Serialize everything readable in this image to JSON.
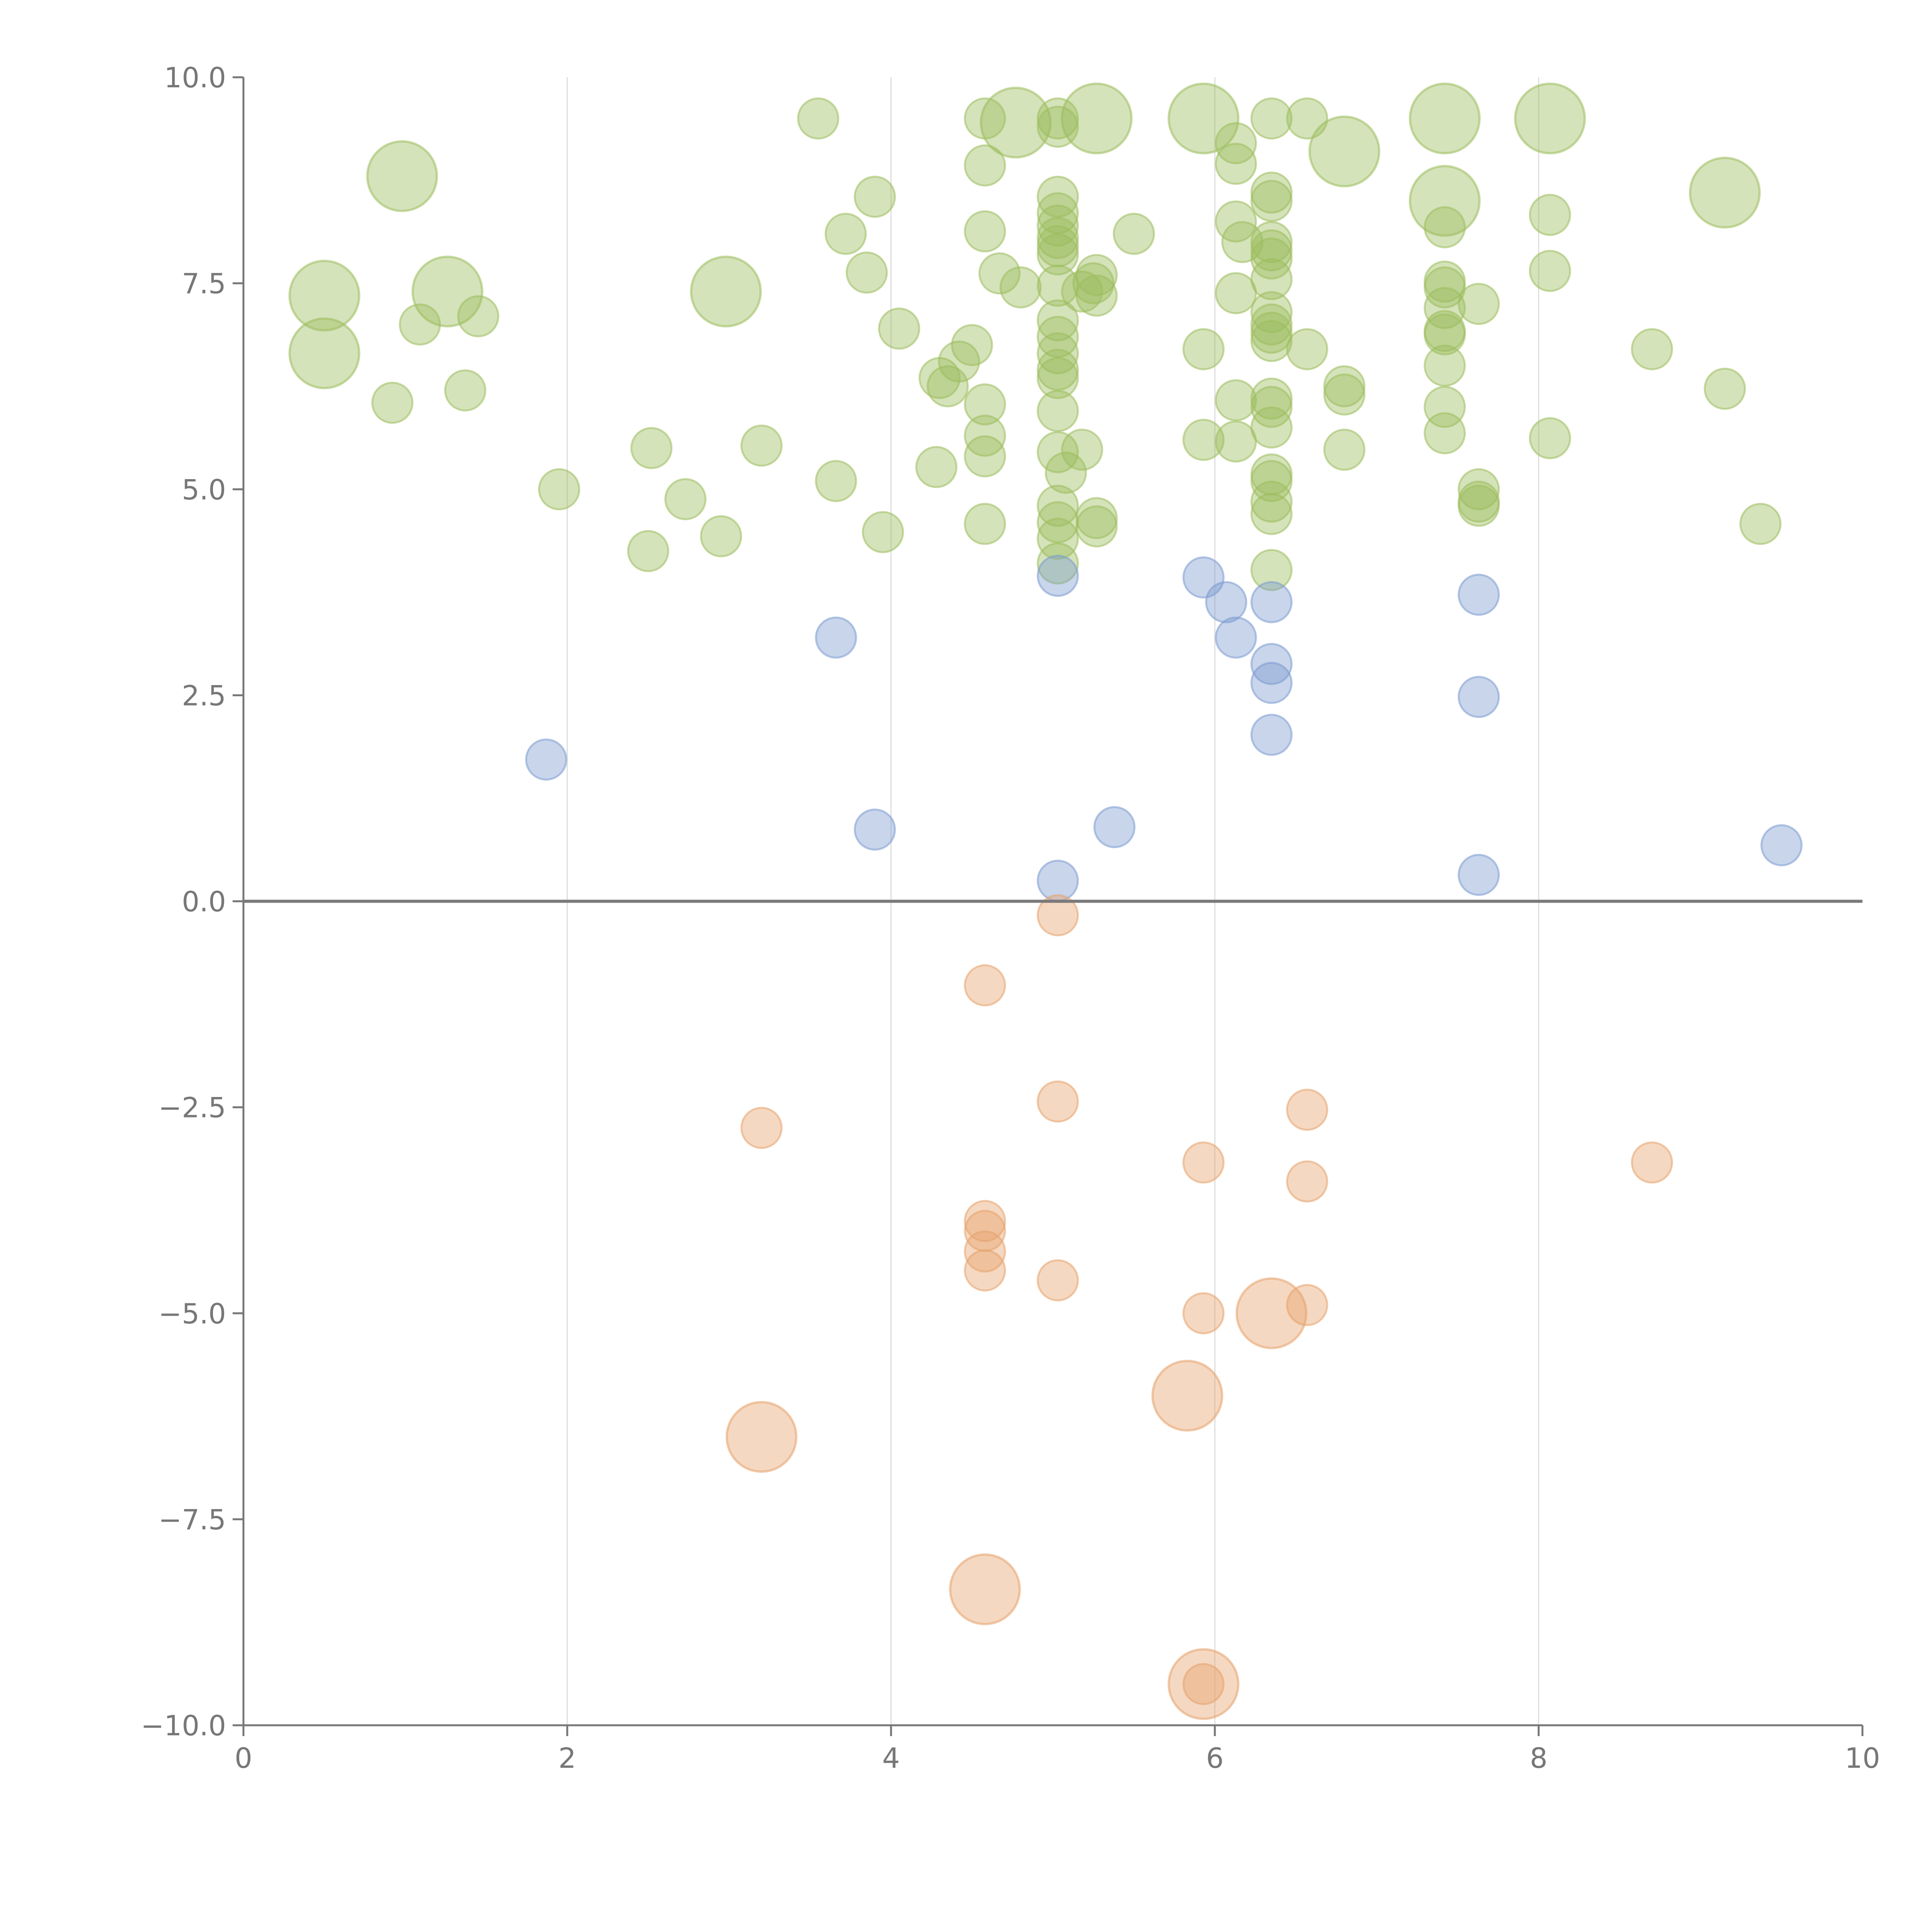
{
  "chart_data": {
    "type": "scatter",
    "xlim": [
      0,
      10
    ],
    "ylim": [
      -10,
      10
    ],
    "x_ticks": [
      "0",
      "2",
      "4",
      "6",
      "8",
      "10"
    ],
    "y_ticks": [
      "10.0",
      "7.5",
      "5.0",
      "2.5",
      "0.0",
      "−2.5",
      "−5.0",
      "−7.5",
      "−10.0"
    ],
    "grid_x": true,
    "zero_line": true,
    "colors": {
      "green": "#9cbd5c",
      "blue": "#7b9bd0",
      "orange": "#e6a36b"
    },
    "series": [
      {
        "color": "green",
        "points": [
          [
            0.5,
            7.35,
            2
          ],
          [
            0.5,
            6.65,
            2
          ],
          [
            0.98,
            8.8,
            2
          ],
          [
            1.26,
            7.4,
            2
          ],
          [
            2.98,
            7.4,
            2
          ],
          [
            4.77,
            9.45,
            2
          ],
          [
            5.27,
            9.5,
            2
          ],
          [
            5.93,
            9.5,
            2
          ],
          [
            6.8,
            9.1,
            2
          ],
          [
            7.42,
            9.5,
            2
          ],
          [
            7.42,
            8.5,
            2
          ],
          [
            8.07,
            9.5,
            2
          ],
          [
            9.15,
            8.6,
            2
          ],
          [
            0.92,
            6.05,
            1
          ],
          [
            1.09,
            7.0,
            1
          ],
          [
            1.37,
            6.2,
            1
          ],
          [
            1.45,
            7.1,
            1
          ],
          [
            1.95,
            5.0,
            1
          ],
          [
            2.5,
            4.25,
            1
          ],
          [
            2.52,
            5.5,
            1
          ],
          [
            2.73,
            4.88,
            1
          ],
          [
            2.95,
            4.43,
            1
          ],
          [
            3.2,
            5.53,
            1
          ],
          [
            3.55,
            9.5,
            1
          ],
          [
            3.66,
            5.1,
            1
          ],
          [
            3.72,
            8.1,
            1
          ],
          [
            3.85,
            7.63,
            1
          ],
          [
            3.9,
            8.55,
            1
          ],
          [
            3.95,
            4.48,
            1
          ],
          [
            4.05,
            6.95,
            1
          ],
          [
            4.28,
            5.27,
            1
          ],
          [
            4.3,
            6.35,
            1
          ],
          [
            4.35,
            6.25,
            1
          ],
          [
            4.42,
            6.55,
            1
          ],
          [
            4.5,
            6.75,
            1
          ],
          [
            4.58,
            9.5,
            1
          ],
          [
            4.58,
            8.93,
            1
          ],
          [
            4.58,
            8.13,
            1
          ],
          [
            4.58,
            6.03,
            1
          ],
          [
            4.58,
            5.65,
            1
          ],
          [
            4.58,
            5.4,
            1
          ],
          [
            4.58,
            4.58,
            1
          ],
          [
            4.67,
            7.62,
            1
          ],
          [
            4.8,
            7.45,
            1
          ],
          [
            5.03,
            9.5,
            1
          ],
          [
            5.03,
            9.4,
            1
          ],
          [
            5.03,
            8.55,
            1
          ],
          [
            5.03,
            8.35,
            1
          ],
          [
            5.03,
            8.2,
            1
          ],
          [
            5.03,
            8.05,
            1
          ],
          [
            5.03,
            7.95,
            1
          ],
          [
            5.03,
            7.85,
            1
          ],
          [
            5.03,
            7.47,
            1
          ],
          [
            5.03,
            7.05,
            1
          ],
          [
            5.03,
            6.85,
            1
          ],
          [
            5.03,
            6.65,
            1
          ],
          [
            5.03,
            6.45,
            1
          ],
          [
            5.03,
            6.35,
            1
          ],
          [
            5.03,
            5.95,
            1
          ],
          [
            5.03,
            5.45,
            1
          ],
          [
            5.03,
            4.8,
            1
          ],
          [
            5.03,
            4.6,
            1
          ],
          [
            5.03,
            4.4,
            1
          ],
          [
            5.03,
            4.1,
            1
          ],
          [
            5.08,
            5.2,
            1
          ],
          [
            5.18,
            7.4,
            1
          ],
          [
            5.18,
            5.48,
            1
          ],
          [
            5.25,
            7.5,
            1
          ],
          [
            5.27,
            7.6,
            1
          ],
          [
            5.27,
            7.35,
            1
          ],
          [
            5.27,
            4.65,
            1
          ],
          [
            5.27,
            4.55,
            1
          ],
          [
            5.5,
            8.1,
            1
          ],
          [
            5.93,
            6.7,
            1
          ],
          [
            5.93,
            5.6,
            1
          ],
          [
            6.13,
            9.2,
            1
          ],
          [
            6.13,
            8.95,
            1
          ],
          [
            6.13,
            8.25,
            1
          ],
          [
            6.13,
            7.38,
            1
          ],
          [
            6.13,
            6.08,
            1
          ],
          [
            6.13,
            5.58,
            1
          ],
          [
            6.17,
            8.0,
            1
          ],
          [
            6.35,
            9.5,
            1
          ],
          [
            6.35,
            8.6,
            1
          ],
          [
            6.35,
            8.5,
            1
          ],
          [
            6.35,
            8.0,
            1
          ],
          [
            6.35,
            7.9,
            1
          ],
          [
            6.35,
            7.8,
            1
          ],
          [
            6.35,
            7.55,
            1
          ],
          [
            6.35,
            7.15,
            1
          ],
          [
            6.35,
            7.0,
            1
          ],
          [
            6.35,
            6.9,
            1
          ],
          [
            6.35,
            6.8,
            1
          ],
          [
            6.35,
            6.1,
            1
          ],
          [
            6.35,
            6.0,
            1
          ],
          [
            6.35,
            5.75,
            1
          ],
          [
            6.35,
            5.18,
            1
          ],
          [
            6.35,
            5.1,
            1
          ],
          [
            6.35,
            4.85,
            1
          ],
          [
            6.35,
            4.7,
            1
          ],
          [
            6.35,
            4.02,
            1
          ],
          [
            6.57,
            9.5,
            1
          ],
          [
            6.57,
            6.7,
            1
          ],
          [
            6.8,
            6.25,
            1
          ],
          [
            6.8,
            6.15,
            1
          ],
          [
            6.8,
            5.48,
            1
          ],
          [
            7.42,
            8.18,
            1
          ],
          [
            7.42,
            7.52,
            1
          ],
          [
            7.42,
            7.45,
            1
          ],
          [
            7.42,
            7.2,
            1
          ],
          [
            7.42,
            6.92,
            1
          ],
          [
            7.42,
            6.88,
            1
          ],
          [
            7.42,
            6.5,
            1
          ],
          [
            7.42,
            6.0,
            1
          ],
          [
            7.42,
            5.68,
            1
          ],
          [
            7.63,
            7.25,
            1
          ],
          [
            7.63,
            5.0,
            1
          ],
          [
            7.63,
            4.85,
            1
          ],
          [
            7.63,
            4.8,
            1
          ],
          [
            8.07,
            8.33,
            1
          ],
          [
            8.07,
            7.65,
            1
          ],
          [
            8.07,
            5.62,
            1
          ],
          [
            8.7,
            6.7,
            1
          ],
          [
            9.15,
            6.22,
            1
          ],
          [
            9.37,
            4.58,
            1
          ]
        ]
      },
      {
        "color": "blue",
        "points": [
          [
            1.87,
            1.72,
            1
          ],
          [
            3.66,
            3.2,
            1
          ],
          [
            3.9,
            0.87,
            1
          ],
          [
            5.03,
            3.95,
            1
          ],
          [
            5.03,
            0.25,
            1
          ],
          [
            5.38,
            0.9,
            1
          ],
          [
            5.93,
            3.93,
            1
          ],
          [
            6.07,
            3.63,
            1
          ],
          [
            6.13,
            3.2,
            1
          ],
          [
            6.35,
            3.63,
            1
          ],
          [
            6.35,
            2.88,
            1
          ],
          [
            6.35,
            2.65,
            1
          ],
          [
            6.35,
            2.02,
            1
          ],
          [
            7.63,
            3.72,
            1
          ],
          [
            7.63,
            2.48,
            1
          ],
          [
            7.63,
            0.32,
            1
          ],
          [
            9.5,
            0.68,
            1
          ]
        ]
      },
      {
        "color": "orange",
        "points": [
          [
            5.03,
            -0.17,
            1
          ],
          [
            4.58,
            -1.02,
            1
          ],
          [
            5.03,
            -2.43,
            1
          ],
          [
            3.2,
            -2.75,
            1
          ],
          [
            6.57,
            -2.53,
            1
          ],
          [
            5.93,
            -3.17,
            1
          ],
          [
            6.57,
            -3.4,
            1
          ],
          [
            8.7,
            -3.17,
            1
          ],
          [
            4.58,
            -3.88,
            1
          ],
          [
            4.58,
            -4.0,
            1
          ],
          [
            4.58,
            -4.25,
            1
          ],
          [
            4.58,
            -4.48,
            1
          ],
          [
            5.03,
            -4.6,
            1
          ],
          [
            5.93,
            -5.0,
            1
          ],
          [
            6.57,
            -4.9,
            1
          ],
          [
            5.93,
            -9.5,
            1
          ],
          [
            6.35,
            -5.0,
            2
          ],
          [
            5.83,
            -6.0,
            2
          ],
          [
            3.2,
            -6.5,
            2
          ],
          [
            4.58,
            -8.35,
            2
          ],
          [
            5.93,
            -9.5,
            2
          ]
        ]
      }
    ]
  }
}
